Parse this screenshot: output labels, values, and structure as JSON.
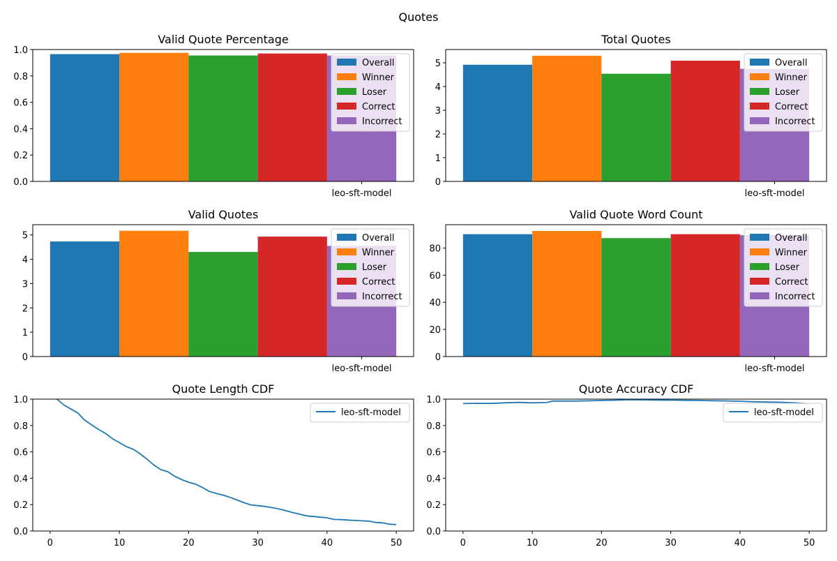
{
  "figure": {
    "title": "Quotes"
  },
  "colors": {
    "Overall": "#1f77b4",
    "Winner": "#ff7f0e",
    "Loser": "#2ca02c",
    "Correct": "#d62728",
    "Incorrect": "#9467bd",
    "line": "#1f77b4"
  },
  "chart_data": [
    {
      "type": "bar",
      "title": "Valid Quote Percentage",
      "categories": [
        "leo-sft-model"
      ],
      "series": [
        {
          "name": "Overall",
          "values": [
            0.965
          ]
        },
        {
          "name": "Winner",
          "values": [
            0.975
          ]
        },
        {
          "name": "Loser",
          "values": [
            0.955
          ]
        },
        {
          "name": "Correct",
          "values": [
            0.97
          ]
        },
        {
          "name": "Incorrect",
          "values": [
            0.955
          ]
        }
      ],
      "ylim": [
        0,
        1.0
      ],
      "yticks": [
        0.0,
        0.2,
        0.4,
        0.6,
        0.8,
        1.0
      ],
      "ytick_labels": [
        "0.0",
        "0.2",
        "0.4",
        "0.6",
        "0.8",
        "1.0"
      ],
      "legend": "top-right"
    },
    {
      "type": "bar",
      "title": "Total Quotes",
      "categories": [
        "leo-sft-model"
      ],
      "series": [
        {
          "name": "Overall",
          "values": [
            4.92
          ]
        },
        {
          "name": "Winner",
          "values": [
            5.3
          ]
        },
        {
          "name": "Loser",
          "values": [
            4.54
          ]
        },
        {
          "name": "Correct",
          "values": [
            5.09
          ]
        },
        {
          "name": "Incorrect",
          "values": [
            4.75
          ]
        }
      ],
      "ylim": [
        0,
        5.56
      ],
      "yticks": [
        0,
        1,
        2,
        3,
        4,
        5
      ],
      "ytick_labels": [
        "0",
        "1",
        "2",
        "3",
        "4",
        "5"
      ],
      "legend": "top-right"
    },
    {
      "type": "bar",
      "title": "Valid Quotes",
      "categories": [
        "leo-sft-model"
      ],
      "series": [
        {
          "name": "Overall",
          "values": [
            4.73
          ]
        },
        {
          "name": "Winner",
          "values": [
            5.17
          ]
        },
        {
          "name": "Loser",
          "values": [
            4.3
          ]
        },
        {
          "name": "Correct",
          "values": [
            4.93
          ]
        },
        {
          "name": "Incorrect",
          "values": [
            4.55
          ]
        }
      ],
      "ylim": [
        0,
        5.42
      ],
      "yticks": [
        0,
        1,
        2,
        3,
        4,
        5
      ],
      "ytick_labels": [
        "0",
        "1",
        "2",
        "3",
        "4",
        "5"
      ],
      "legend": "top-right"
    },
    {
      "type": "bar",
      "title": "Valid Quote Word Count",
      "categories": [
        "leo-sft-model"
      ],
      "series": [
        {
          "name": "Overall",
          "values": [
            90.2
          ]
        },
        {
          "name": "Winner",
          "values": [
            92.6
          ]
        },
        {
          "name": "Loser",
          "values": [
            87.3
          ]
        },
        {
          "name": "Correct",
          "values": [
            90.2
          ]
        },
        {
          "name": "Incorrect",
          "values": [
            89.5
          ]
        }
      ],
      "ylim": [
        0,
        97.2
      ],
      "yticks": [
        0,
        20,
        40,
        60,
        80
      ],
      "ytick_labels": [
        "0",
        "20",
        "40",
        "60",
        "80"
      ],
      "legend": "top-right"
    },
    {
      "type": "line",
      "title": "Quote Length CDF",
      "series": [
        {
          "name": "leo-sft-model",
          "x": [
            1,
            2,
            3,
            4,
            5,
            6,
            7,
            8,
            9,
            10,
            11,
            12,
            13,
            14,
            15,
            16,
            17,
            18,
            19,
            20,
            21,
            22,
            23,
            24,
            25,
            26,
            27,
            28,
            29,
            30,
            31,
            32,
            33,
            34,
            35,
            36,
            37,
            38,
            39,
            40,
            41,
            42,
            43,
            44,
            45,
            46,
            47,
            48,
            49,
            50
          ],
          "y": [
            1.0,
            0.955,
            0.925,
            0.895,
            0.84,
            0.805,
            0.77,
            0.74,
            0.7,
            0.67,
            0.64,
            0.62,
            0.585,
            0.545,
            0.5,
            0.465,
            0.45,
            0.415,
            0.39,
            0.37,
            0.355,
            0.33,
            0.3,
            0.285,
            0.272,
            0.255,
            0.235,
            0.215,
            0.198,
            0.192,
            0.186,
            0.178,
            0.168,
            0.155,
            0.14,
            0.128,
            0.115,
            0.11,
            0.105,
            0.1,
            0.088,
            0.086,
            0.083,
            0.08,
            0.077,
            0.075,
            0.065,
            0.062,
            0.052,
            0.048
          ]
        }
      ],
      "xlim": [
        -2.5,
        52.5
      ],
      "ylim": [
        0,
        1.0
      ],
      "xticks": [
        0,
        10,
        20,
        30,
        40,
        50
      ],
      "xtick_labels": [
        "0",
        "10",
        "20",
        "30",
        "40",
        "50"
      ],
      "yticks": [
        0.0,
        0.2,
        0.4,
        0.6,
        0.8,
        1.0
      ],
      "ytick_labels": [
        "0.0",
        "0.2",
        "0.4",
        "0.6",
        "0.8",
        "1.0"
      ],
      "legend": "top-right"
    },
    {
      "type": "line",
      "title": "Quote Accuracy CDF",
      "series": [
        {
          "name": "leo-sft-model",
          "x": [
            0,
            2,
            4,
            6,
            8,
            10,
            12,
            13,
            14,
            16,
            18,
            20,
            22,
            24,
            26,
            28,
            30,
            32,
            34,
            36,
            38,
            40,
            42,
            44,
            46,
            48,
            50
          ],
          "y": [
            0.966,
            0.968,
            0.967,
            0.972,
            0.975,
            0.972,
            0.974,
            0.985,
            0.985,
            0.985,
            0.987,
            0.99,
            0.992,
            0.995,
            0.994,
            0.993,
            0.992,
            0.991,
            0.99,
            0.988,
            0.986,
            0.984,
            0.98,
            0.978,
            0.976,
            0.972,
            0.965
          ]
        }
      ],
      "xlim": [
        -2.5,
        52.5
      ],
      "ylim": [
        0,
        1.0
      ],
      "xticks": [
        0,
        10,
        20,
        30,
        40,
        50
      ],
      "xtick_labels": [
        "0",
        "10",
        "20",
        "30",
        "40",
        "50"
      ],
      "yticks": [
        0.0,
        0.2,
        0.4,
        0.6,
        0.8,
        1.0
      ],
      "ytick_labels": [
        "0.0",
        "0.2",
        "0.4",
        "0.6",
        "0.8",
        "1.0"
      ],
      "legend": "top-right"
    }
  ]
}
